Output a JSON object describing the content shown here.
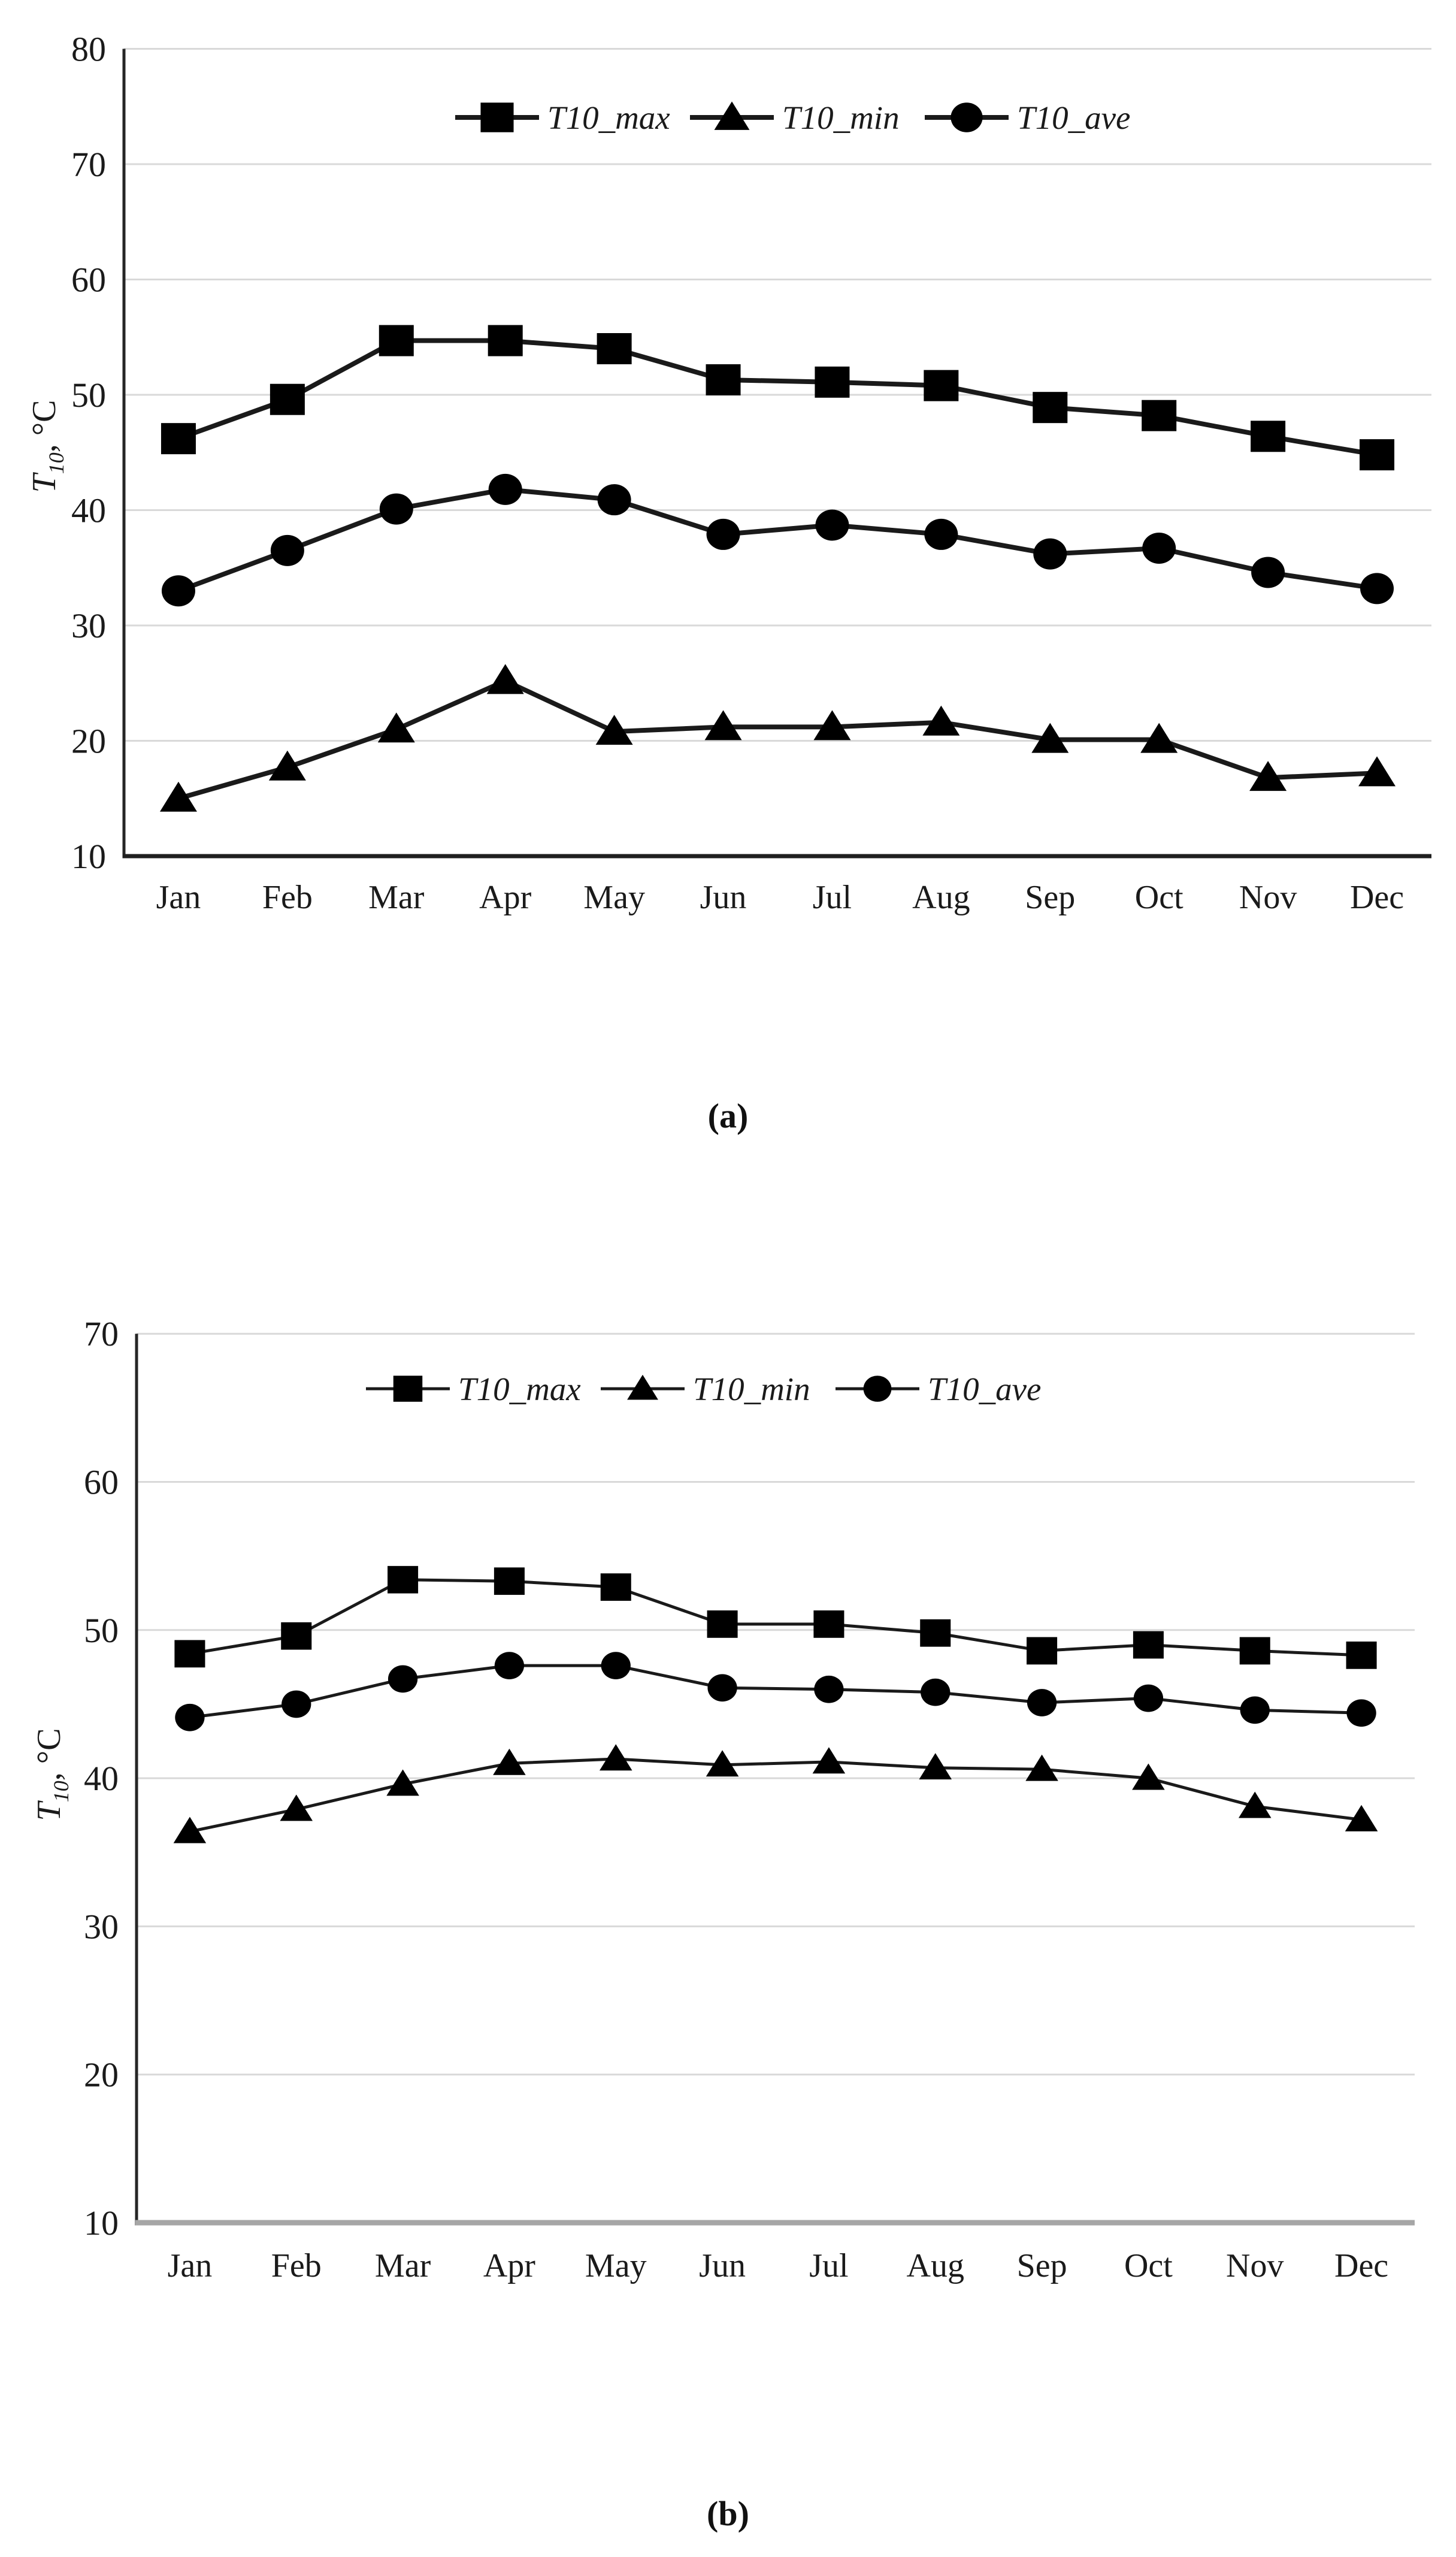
{
  "figure": {
    "background": "#ffffff",
    "series_color": "#000000",
    "grid_color": "#d9d9d9"
  },
  "captions": {
    "a": "(a)",
    "b": "(b)"
  },
  "chart_data": [
    {
      "id": "a",
      "type": "line",
      "caption": "(a)",
      "ylabel": {
        "var": "T",
        "sub": "10",
        "rest": ", °C"
      },
      "ylim": [
        10,
        80
      ],
      "yticks": [
        10,
        20,
        30,
        40,
        50,
        60,
        70,
        80
      ],
      "grid": "horizontal",
      "legend_position": "top-center",
      "categories": [
        "Jan",
        "Feb",
        "Mar",
        "Apr",
        "May",
        "Jun",
        "Jul",
        "Aug",
        "Sep",
        "Oct",
        "Nov",
        "Dec"
      ],
      "series": [
        {
          "name": "T10_max",
          "marker": "square",
          "values": [
            46.2,
            49.6,
            54.7,
            54.7,
            54.0,
            51.3,
            51.1,
            50.8,
            48.9,
            48.2,
            46.4,
            44.8
          ]
        },
        {
          "name": "T10_min",
          "marker": "triangle",
          "values": [
            15.0,
            17.7,
            21.0,
            25.2,
            20.8,
            21.2,
            21.2,
            21.6,
            20.1,
            20.1,
            16.8,
            17.2
          ]
        },
        {
          "name": "T10_ave",
          "marker": "circle",
          "values": [
            33.0,
            36.5,
            40.1,
            41.8,
            40.9,
            37.9,
            38.7,
            37.9,
            36.2,
            36.7,
            34.6,
            33.2
          ]
        }
      ],
      "colors": {
        "line": "#1a1a1a",
        "grid": "#d9d9d9",
        "axis": "#262626",
        "bottom_axis": "#1f1f1f"
      }
    },
    {
      "id": "b",
      "type": "line",
      "caption": "(b)",
      "ylabel": {
        "var": "T",
        "sub": "10",
        "rest": ", °C"
      },
      "ylim": [
        10,
        70
      ],
      "yticks": [
        10,
        20,
        30,
        40,
        50,
        60,
        70
      ],
      "grid": "horizontal",
      "legend_position": "top-center",
      "categories": [
        "Jan",
        "Feb",
        "Mar",
        "Apr",
        "May",
        "Jun",
        "Jul",
        "Aug",
        "Sep",
        "Oct",
        "Nov",
        "Dec"
      ],
      "series": [
        {
          "name": "T10_max",
          "marker": "square",
          "values": [
            48.4,
            49.6,
            53.4,
            53.3,
            52.9,
            50.4,
            50.4,
            49.8,
            48.6,
            49.0,
            48.6,
            48.3
          ]
        },
        {
          "name": "T10_min",
          "marker": "triangle",
          "values": [
            36.4,
            37.9,
            39.6,
            41.0,
            41.3,
            40.9,
            41.1,
            40.7,
            40.6,
            40.0,
            38.1,
            37.2
          ]
        },
        {
          "name": "T10_ave",
          "marker": "circle",
          "values": [
            44.1,
            45.0,
            46.7,
            47.6,
            47.6,
            46.1,
            46.0,
            45.8,
            45.1,
            45.4,
            44.6,
            44.4
          ]
        }
      ],
      "colors": {
        "line": "#1a1a1a",
        "grid": "#d9d9d9",
        "axis": "#262626",
        "bottom_axis": "#a6a6a6"
      }
    }
  ]
}
